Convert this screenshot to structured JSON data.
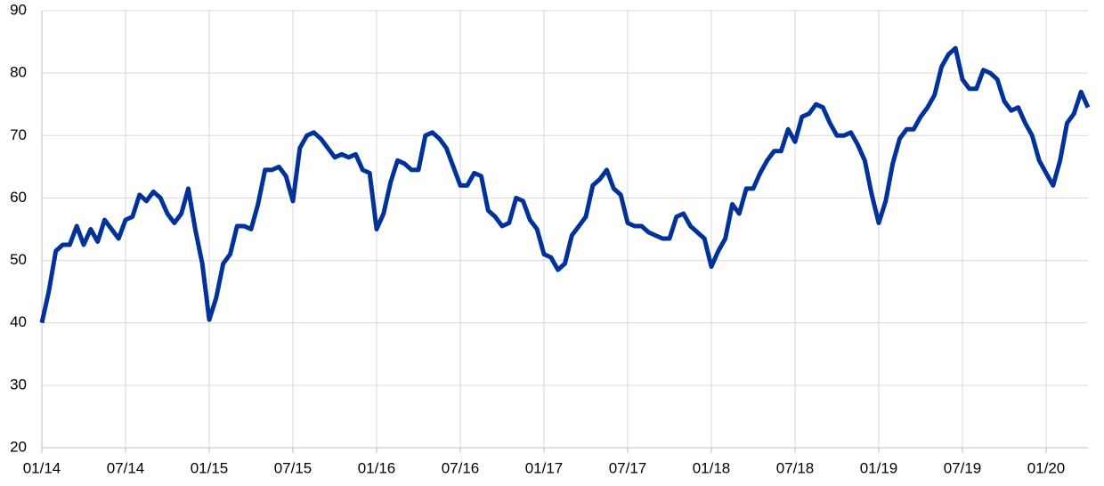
{
  "chart_data": {
    "type": "line",
    "categories": [
      "01/14",
      null,
      null,
      null,
      null,
      null,
      null,
      null,
      null,
      null,
      null,
      null,
      "07/14",
      null,
      null,
      null,
      null,
      null,
      null,
      null,
      null,
      null,
      null,
      null,
      "01/15",
      null,
      null,
      null,
      null,
      null,
      null,
      null,
      null,
      null,
      null,
      null,
      "07/15",
      null,
      null,
      null,
      null,
      null,
      null,
      null,
      null,
      null,
      null,
      null,
      "01/16",
      null,
      null,
      null,
      null,
      null,
      null,
      null,
      null,
      null,
      null,
      null,
      "07/16",
      null,
      null,
      null,
      null,
      null,
      null,
      null,
      null,
      null,
      null,
      null,
      "01/17",
      null,
      null,
      null,
      null,
      null,
      null,
      null,
      null,
      null,
      null,
      null,
      "07/17",
      null,
      null,
      null,
      null,
      null,
      null,
      null,
      null,
      null,
      null,
      null,
      "01/18",
      null,
      null,
      null,
      null,
      null,
      null,
      null,
      null,
      null,
      null,
      null,
      "07/18",
      null,
      null,
      null,
      null,
      null,
      null,
      null,
      null,
      null,
      null,
      null,
      "01/19",
      null,
      null,
      null,
      null,
      null,
      null,
      null,
      null,
      null,
      null,
      null,
      "07/19",
      null,
      null,
      null,
      null,
      null,
      null,
      null,
      null,
      null,
      null,
      null,
      "01/20",
      null,
      null,
      null,
      null,
      null,
      null
    ],
    "series": [
      {
        "color": "#003299",
        "values": [
          40,
          45,
          51.5,
          52.5,
          52.5,
          55.5,
          52.5,
          55,
          53,
          56.5,
          55,
          53.5,
          56.5,
          57,
          60.5,
          59.5,
          61,
          60,
          57.5,
          56,
          57.5,
          61.5,
          55,
          49.5,
          40.5,
          44,
          49.5,
          51,
          55.5,
          55.5,
          55,
          59,
          64.5,
          64.5,
          65,
          63.5,
          59.5,
          68,
          70,
          70.5,
          69.5,
          68,
          66.5,
          67,
          66.5,
          67,
          64.5,
          64,
          55,
          57.5,
          62.5,
          66,
          65.5,
          64.5,
          64.5,
          70,
          70.5,
          69.5,
          68,
          65,
          62,
          62,
          64,
          63.5,
          58,
          57,
          55.5,
          56,
          60,
          59.5,
          56.5,
          55,
          51,
          50.5,
          48.5,
          49.5,
          54,
          55.5,
          57,
          62,
          63,
          64.5,
          61.5,
          60.5,
          56,
          55.5,
          55.5,
          54.5,
          54,
          53.5,
          53.5,
          57,
          57.5,
          55.5,
          54.5,
          53.5,
          49,
          51.5,
          53.5,
          59,
          57.5,
          61.5,
          61.5,
          64,
          66,
          67.5,
          67.5,
          71,
          69,
          73,
          73.5,
          75,
          74.5,
          72,
          70,
          70,
          70.5,
          68.5,
          66,
          60.5,
          56,
          59.5,
          65.5,
          69.5,
          71,
          71,
          73,
          74.5,
          76.5,
          81,
          83,
          84,
          79,
          77.5,
          77.5,
          80.5,
          80,
          79,
          75.5,
          74,
          74.5,
          72,
          70,
          66,
          64,
          62,
          66,
          72,
          73.5,
          77,
          74.5
        ]
      }
    ],
    "ylim": [
      20,
      90
    ],
    "yticks": [
      20,
      30,
      40,
      50,
      60,
      70,
      80,
      90
    ],
    "grid": true
  }
}
